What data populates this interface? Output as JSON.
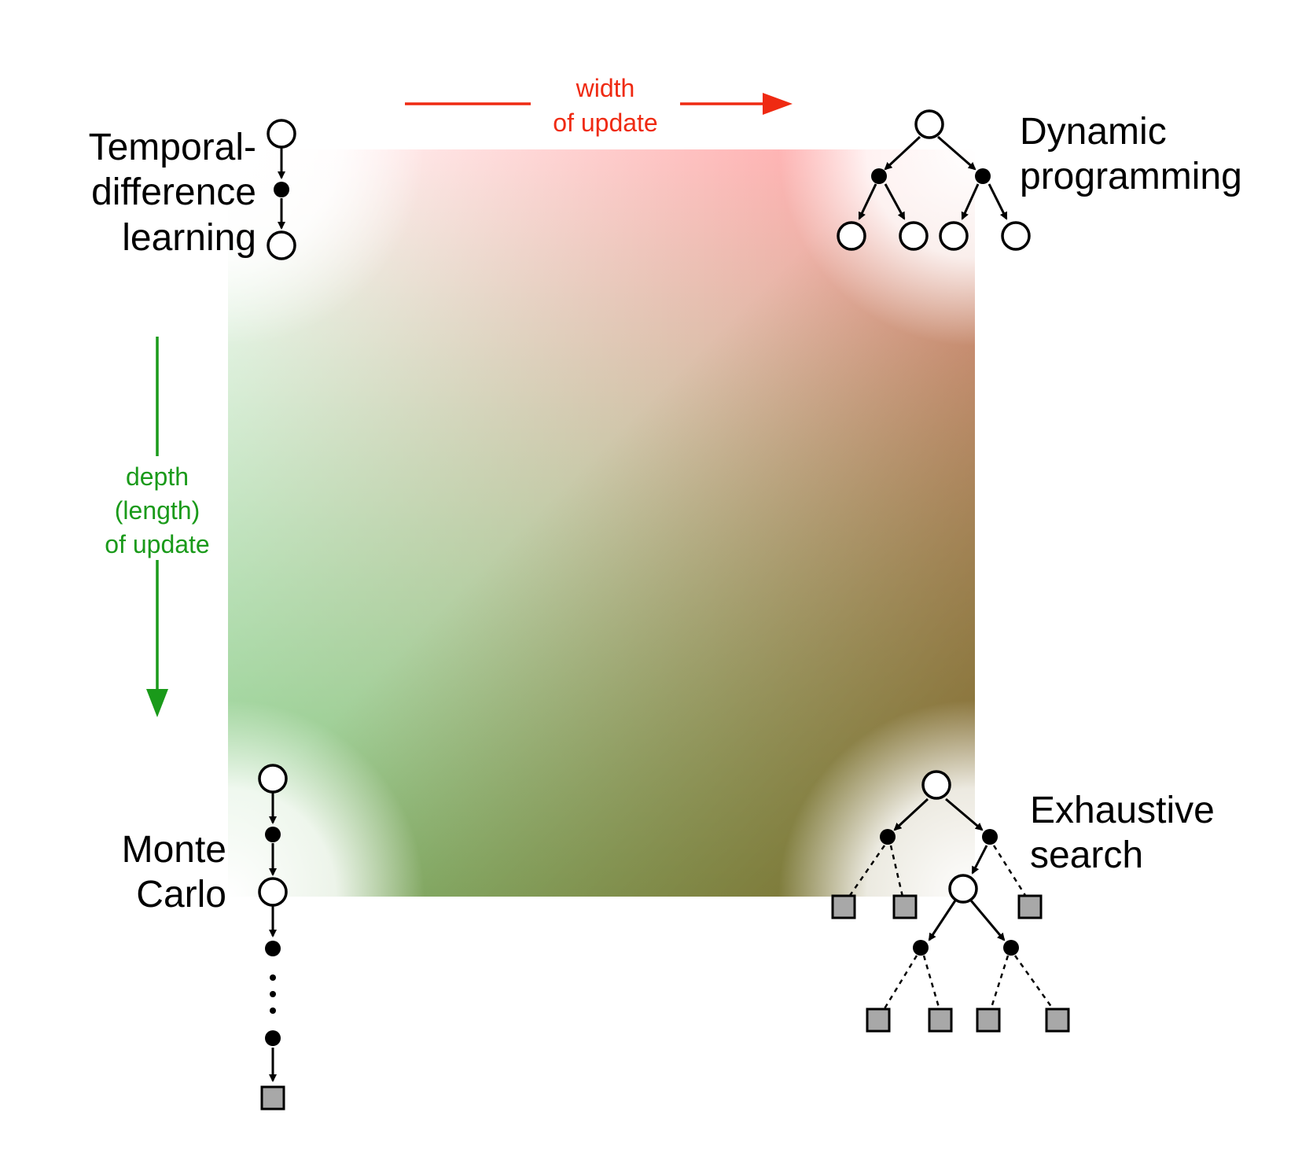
{
  "axes": {
    "width": {
      "line1": "width",
      "line2": "of update",
      "color": "#ef2a12"
    },
    "depth": {
      "line1": "depth",
      "line2": "(length)",
      "line3": "of update",
      "color": "#1a9a1a"
    }
  },
  "corners": {
    "td": {
      "line1": "Temporal-",
      "line2": "difference",
      "line3": "learning"
    },
    "dp": {
      "line1": "Dynamic",
      "line2": "programming"
    },
    "mc": {
      "line1": "Monte",
      "line2": "Carlo"
    },
    "es": {
      "line1": "Exhaustive",
      "line2": "search"
    }
  },
  "colors": {
    "top_left": "#ffffff",
    "top_right": "#ff9a9a",
    "bottom_left": "#8fd08a",
    "bottom_right": "#a0581a",
    "terminal_fill": "#a8a8a8"
  }
}
